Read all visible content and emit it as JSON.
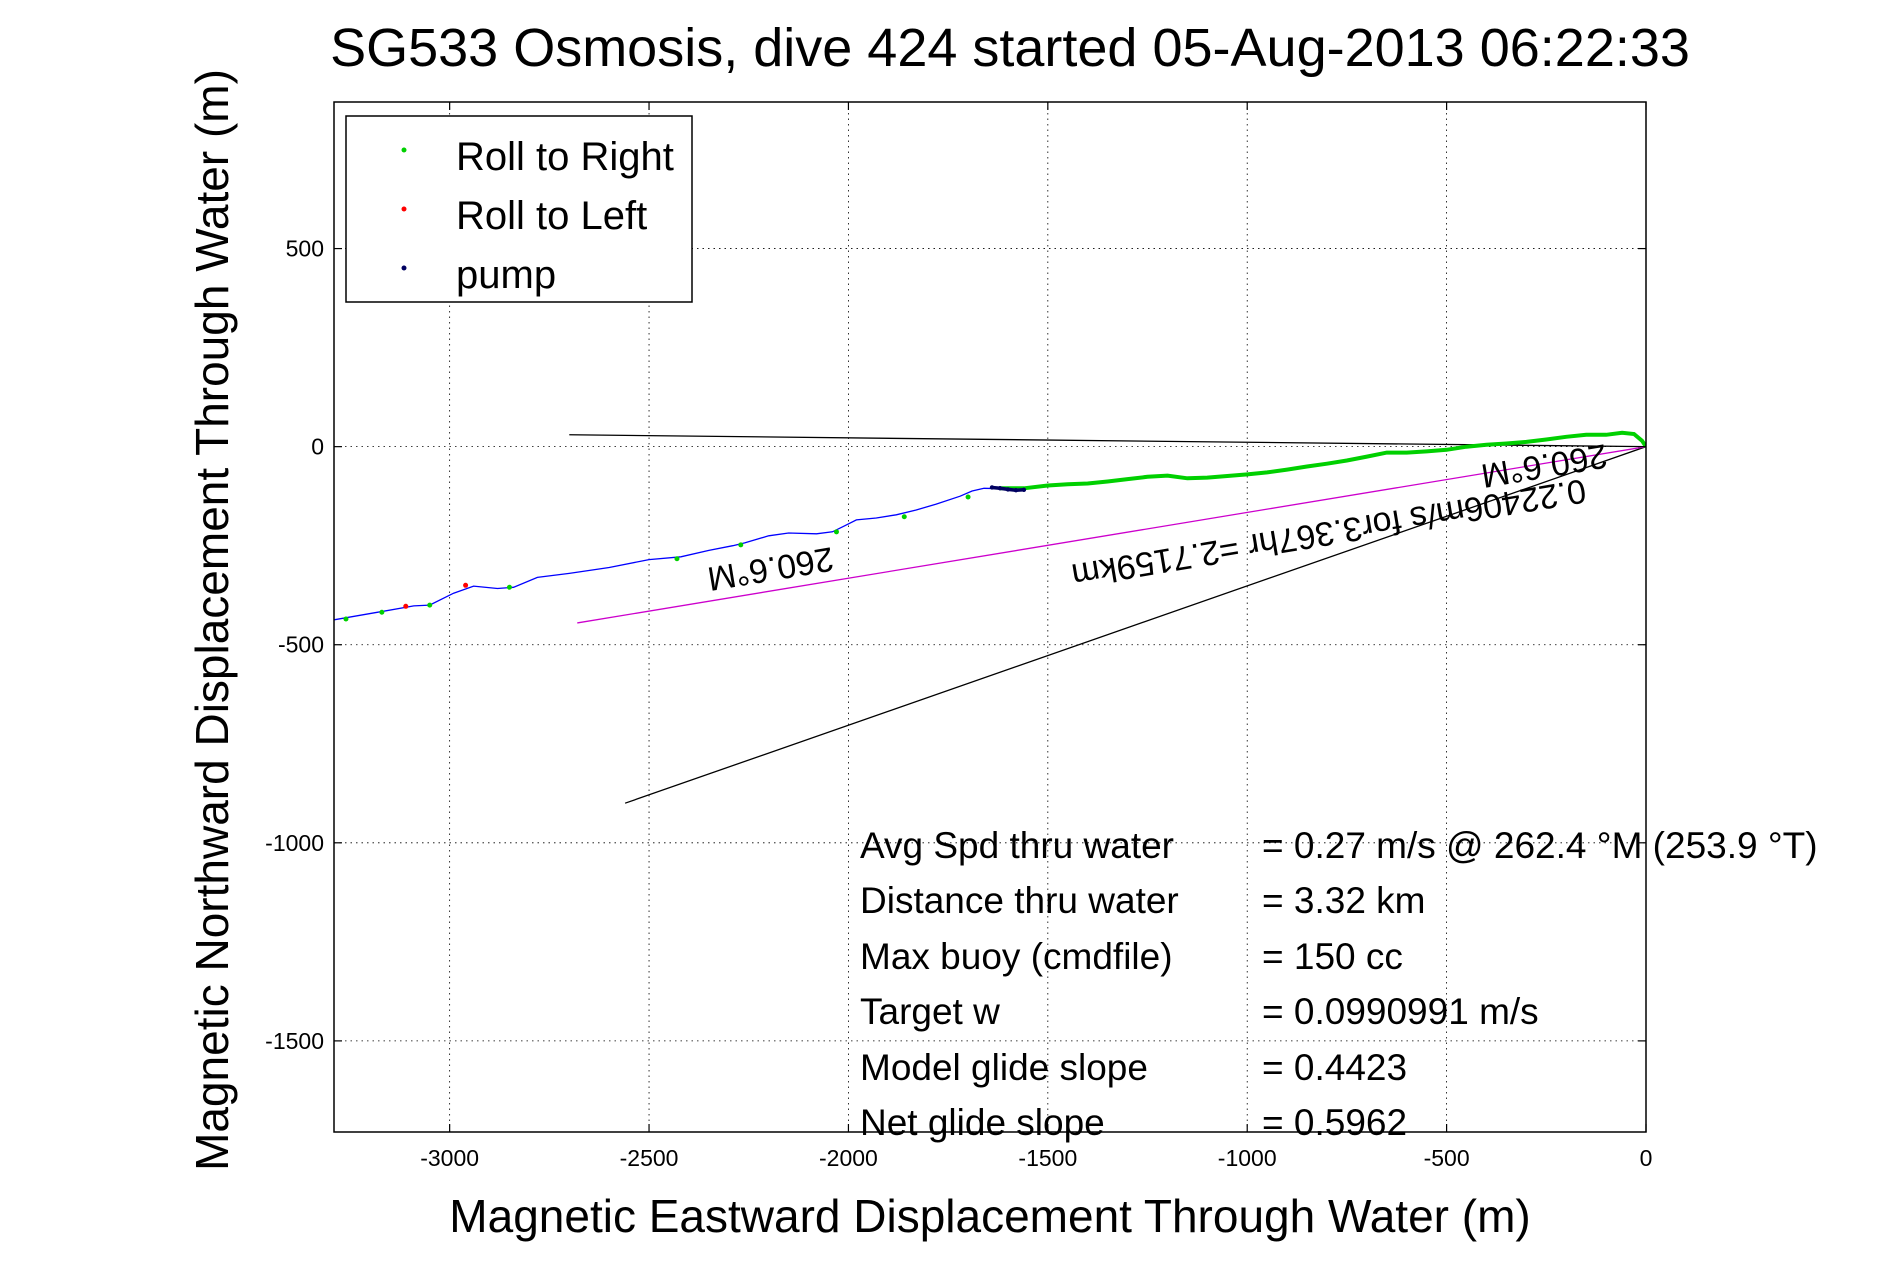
{
  "chart_data": {
    "type": "line",
    "title": "SG533 Osmosis, dive 424 started 05-Aug-2013 06:22:33",
    "xlabel": "Magnetic Eastward Displacement Through Water (m)",
    "ylabel": "Magnetic Northward Displacement Through Water (m)",
    "xlim": [
      -3290,
      0
    ],
    "ylim": [
      -1730,
      870
    ],
    "xticks": [
      -3000,
      -2500,
      -2000,
      -1500,
      -1000,
      -500,
      0
    ],
    "yticks": [
      500,
      0,
      -500,
      -1000,
      -1500
    ],
    "grid": true,
    "legend_position": "top-left",
    "colors": {
      "roll_right": "#00d000",
      "roll_left": "#ff0000",
      "pump": "#000060",
      "track": "#0000ff",
      "heading_line": "#cc00cc",
      "reference_lines": "#000000"
    },
    "legend": [
      {
        "label": "Roll to Right",
        "color": "#00d000"
      },
      {
        "label": "Roll to Left",
        "color": "#ff0000"
      },
      {
        "label": "pump",
        "color": "#000060"
      }
    ],
    "series": [
      {
        "name": "track",
        "x": [
          -3290,
          -3180,
          -3090,
          -3050,
          -2990,
          -2940,
          -2880,
          -2840,
          -2780,
          -2700,
          -2600,
          -2500,
          -2420,
          -2350,
          -2290,
          -2260,
          -2200,
          -2150,
          -2080,
          -2040,
          -2010,
          -1980,
          -1930,
          -1880,
          -1830,
          -1780,
          -1720,
          -1690,
          -1660,
          -1620,
          -1600
        ],
        "y": [
          -437,
          -418,
          -402,
          -400,
          -370,
          -352,
          -358,
          -355,
          -330,
          -320,
          -305,
          -285,
          -278,
          -262,
          -250,
          -243,
          -225,
          -218,
          -220,
          -215,
          -200,
          -185,
          -180,
          -172,
          -160,
          -145,
          -125,
          -112,
          -105,
          -106,
          -110
        ]
      },
      {
        "name": "Roll to Right",
        "x": [
          -1620,
          -1560,
          -1500,
          -1450,
          -1400,
          -1350,
          -1300,
          -1250,
          -1200,
          -1150,
          -1100,
          -1050,
          -1000,
          -950,
          -900,
          -850,
          -800,
          -750,
          -700,
          -650,
          -600,
          -550,
          -500,
          -450,
          -400,
          -350,
          -300,
          -250,
          -200,
          -150,
          -100,
          -60,
          -30,
          -10,
          0
        ],
        "y": [
          -105,
          -105,
          -98,
          -95,
          -93,
          -88,
          -82,
          -76,
          -73,
          -80,
          -78,
          -74,
          -70,
          -65,
          -58,
          -50,
          -43,
          -35,
          -25,
          -15,
          -15,
          -12,
          -8,
          0,
          5,
          8,
          12,
          18,
          25,
          30,
          30,
          35,
          32,
          15,
          0
        ]
      },
      {
        "name": "Roll to Right",
        "x": [
          -3260,
          -3170,
          -3050,
          -2850,
          -2430,
          -2270,
          -2030,
          -1860,
          -1700
        ],
        "y": [
          -435,
          -418,
          -400,
          -355,
          -283,
          -248,
          -215,
          -177,
          -127
        ]
      },
      {
        "name": "Roll to Left",
        "x": [
          -2960,
          -3110
        ],
        "y": [
          -350,
          -403
        ]
      },
      {
        "name": "pump",
        "x": [
          -1640,
          -1620,
          -1600,
          -1580,
          -1560
        ],
        "y": [
          -103,
          -105,
          -108,
          -110,
          -109
        ],
        "note": "dense pump points at end of track"
      }
    ],
    "reference_lines": [
      {
        "x": [
          0,
          -2700
        ],
        "y": [
          0,
          30
        ],
        "color": "#000000"
      },
      {
        "x": [
          0,
          -2560
        ],
        "y": [
          0,
          -900
        ],
        "color": "#000000"
      },
      {
        "x": [
          0,
          -2680
        ],
        "y": [
          0,
          -445
        ],
        "color": "#cc00cc"
      }
    ],
    "annotations": [
      {
        "text": "260.6°M",
        "x": -2200,
        "y": -280,
        "rotation_deg": 170.5
      },
      {
        "text": "260.6°M",
        "x": -260,
        "y": -20,
        "rotation_deg": 170.5
      },
      {
        "text": "0.22406m/s for3.367hr =2.7159km",
        "x": -800,
        "y": -190,
        "rotation_deg": 170.5
      }
    ],
    "stats": [
      {
        "label": "Avg Spd thru water",
        "value": "=  0.27 m/s @ 262.4 °M (253.9 °T)"
      },
      {
        "label": "Distance thru water",
        "value": "=  3.32 km"
      },
      {
        "label": "Max buoy (cmdfile)",
        "value": "= 150 cc"
      },
      {
        "label": "Target w",
        "value": "= 0.0990991 m/s"
      },
      {
        "label": "Model glide slope",
        "value": "= 0.4423"
      },
      {
        "label": "Net glide slope",
        "value": "= 0.5962"
      }
    ]
  }
}
